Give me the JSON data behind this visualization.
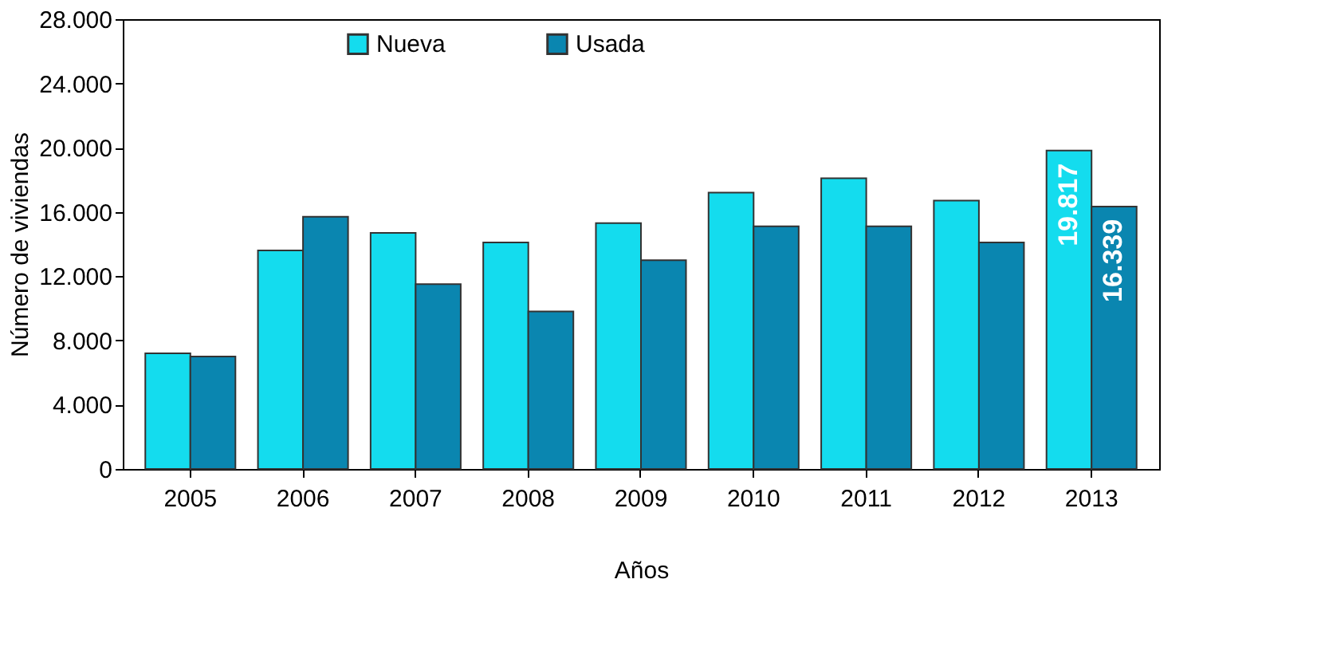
{
  "chart_data": {
    "type": "bar",
    "xlabel": "Años",
    "ylabel": "Número de viviendas",
    "categories": [
      "2005",
      "2006",
      "2007",
      "2008",
      "2009",
      "2010",
      "2011",
      "2012",
      "2013"
    ],
    "series": [
      {
        "name": "Nueva",
        "color": "#14dcee",
        "values": [
          7200,
          13600,
          14700,
          14100,
          15300,
          17200,
          18100,
          16700,
          19817
        ],
        "value_labels": [
          null,
          null,
          null,
          null,
          null,
          null,
          null,
          null,
          "19.817"
        ]
      },
      {
        "name": "Usada",
        "color": "#0a86b0",
        "values": [
          7000,
          15700,
          11500,
          9800,
          13000,
          15100,
          15100,
          14100,
          16339
        ],
        "value_labels": [
          null,
          null,
          null,
          null,
          null,
          null,
          null,
          null,
          "16.339"
        ]
      }
    ],
    "ylim": [
      0,
      28000
    ],
    "yticks": [
      {
        "value": 0,
        "label": "0"
      },
      {
        "value": 4000,
        "label": "4.000"
      },
      {
        "value": 8000,
        "label": "8.000"
      },
      {
        "value": 12000,
        "label": "12.000"
      },
      {
        "value": 16000,
        "label": "16.000"
      },
      {
        "value": 20000,
        "label": "20.000"
      },
      {
        "value": 24000,
        "label": "24.000"
      },
      {
        "value": 28000,
        "label": "28.000"
      }
    ],
    "grid": false,
    "legend": "top"
  }
}
